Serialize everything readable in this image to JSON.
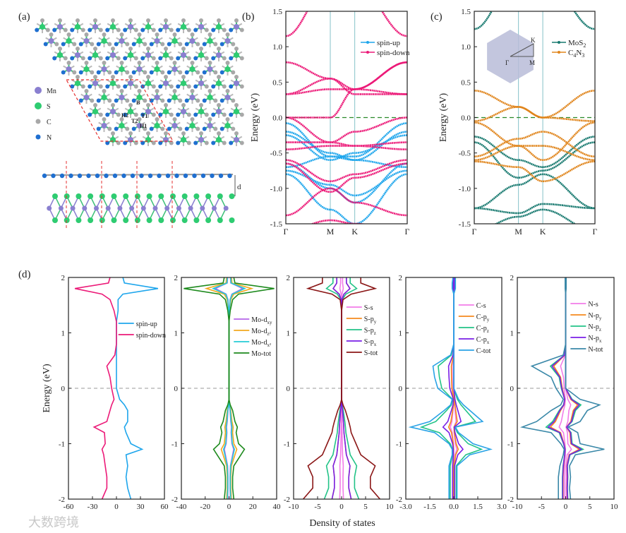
{
  "panel_labels": {
    "a": "(a)",
    "b": "(b)",
    "c": "(c)",
    "d": "(d)"
  },
  "structure": {
    "legend": [
      {
        "label": "Mn",
        "color": "#8a7fd0"
      },
      {
        "label": "S",
        "color": "#2ecc71"
      },
      {
        "label": "C",
        "color": "#a8a8a8"
      },
      {
        "label": "N",
        "color": "#1f6fd0"
      }
    ],
    "sites": [
      "B",
      "H2",
      "T1",
      "T2",
      "H1"
    ],
    "distance_label": "d"
  },
  "watermark": "大数跨境",
  "chart_data": [
    {
      "id": "b",
      "type": "line",
      "title": "",
      "ylabel": "Energy (eV)",
      "xlabel": "",
      "ylim": [
        -1.5,
        1.5
      ],
      "yticks": [
        "1.5",
        "1.0",
        "0.5",
        "0.0",
        "-0.5",
        "-1.0",
        "-1.5"
      ],
      "ytick_values": [
        1.5,
        1.0,
        0.5,
        0.0,
        -0.5,
        -1.0,
        -1.5
      ],
      "kpoints": [
        "Γ",
        "M",
        "K",
        "Γ"
      ],
      "kpath_positions": [
        0,
        1,
        1.55,
        2.73
      ],
      "fermi_level": 0,
      "legend": "top-right",
      "series": [
        {
          "name": "spin-up",
          "color": "#1fa6ec",
          "bands": [
            [
              -0.08,
              -0.55,
              -0.55,
              -0.08
            ],
            [
              -0.2,
              -0.5,
              -0.6,
              -0.2
            ],
            [
              -0.25,
              -0.6,
              -0.5,
              -0.25
            ],
            [
              -0.65,
              -1.0,
              -1.2,
              -0.65
            ],
            [
              -0.8,
              -1.3,
              -1.5,
              -0.8
            ],
            [
              -0.7,
              -0.55,
              -0.6,
              -0.7
            ],
            [
              -0.75,
              -0.95,
              -1.1,
              -0.75
            ]
          ]
        },
        {
          "name": "spin-down",
          "color": "#ec1a78",
          "bands": [
            [
              1.15,
              1.9,
              1.9,
              1.15
            ],
            [
              0.78,
              0.55,
              0.4,
              0.78
            ],
            [
              0.33,
              0.55,
              0.33,
              0.33
            ],
            [
              0.33,
              0.4,
              0.4,
              0.33
            ],
            [
              0.0,
              0.0,
              0.4,
              0.78
            ],
            [
              0.0,
              -0.35,
              -0.2,
              0.0
            ],
            [
              -0.35,
              -0.35,
              -0.4,
              -0.35
            ],
            [
              -0.45,
              -0.4,
              -0.4,
              -0.45
            ],
            [
              -0.6,
              -0.9,
              -0.8,
              -0.6
            ],
            [
              -0.65,
              -1.05,
              -0.85,
              -0.65
            ],
            [
              -1.38,
              -1.0,
              -1.2,
              -1.38
            ],
            [
              -1.6,
              -1.45,
              -1.5,
              -1.6
            ]
          ]
        }
      ]
    },
    {
      "id": "c",
      "type": "line",
      "title": "",
      "ylabel": "Energy (eV)",
      "xlabel": "",
      "ylim": [
        -1.5,
        1.5
      ],
      "yticks": [
        "1.5",
        "1.0",
        "0.5",
        "0.0",
        "-0.5",
        "-1.0",
        "-1.5"
      ],
      "ytick_values": [
        1.5,
        1.0,
        0.5,
        0.0,
        -0.5,
        -1.0,
        -1.5
      ],
      "kpoints": [
        "Γ",
        "M",
        "K",
        "Γ"
      ],
      "kpath_positions": [
        0,
        1,
        1.55,
        2.73
      ],
      "fermi_level": 0,
      "legend": "top-right",
      "inset": {
        "labels": [
          "Γ",
          "M",
          "K"
        ],
        "color": "#b8bcd8"
      },
      "series": [
        {
          "name": "MoS",
          "sub": "2",
          "color": "#17796f",
          "bands": [
            [
              1.25,
              2.0,
              2.0,
              1.25
            ],
            [
              -0.27,
              -0.6,
              -0.7,
              -0.27
            ],
            [
              -0.35,
              -0.85,
              -0.75,
              -0.35
            ],
            [
              -1.28,
              -0.95,
              -0.8,
              -1.28
            ],
            [
              -1.28,
              -1.35,
              -1.22,
              -1.28
            ],
            [
              -1.6,
              -1.4,
              -1.3,
              -1.6
            ]
          ]
        },
        {
          "name": "C",
          "sub": "4",
          "name2": "N",
          "sub2": "3",
          "color": "#e0851c",
          "bands": [
            [
              0.38,
              0.15,
              0.0,
              0.38
            ],
            [
              -0.05,
              0.15,
              0.0,
              -0.05
            ],
            [
              -0.07,
              -0.4,
              -0.6,
              -0.07
            ],
            [
              -0.55,
              -0.3,
              -0.2,
              -0.55
            ],
            [
              -0.6,
              -0.4,
              -0.4,
              -0.6
            ],
            [
              -0.62,
              -0.7,
              -0.9,
              -0.62
            ]
          ]
        }
      ]
    },
    {
      "id": "d",
      "type": "line",
      "xlabel": "Density of states",
      "ylabel": "Energy (eV)",
      "ylim": [
        -2,
        2
      ],
      "yticks": [
        "2",
        "1",
        "0",
        "-1",
        "-2"
      ],
      "ytick_values": [
        2,
        1,
        0,
        -1,
        -2
      ],
      "energy": [
        -2,
        -1.8,
        -1.6,
        -1.4,
        -1.2,
        -1.1,
        -1,
        -0.8,
        -0.7,
        -0.6,
        -0.4,
        -0.3,
        -0.2,
        0,
        0.2,
        0.4,
        0.6,
        0.8,
        1,
        1.2,
        1.4,
        1.6,
        1.7,
        1.8,
        1.9,
        2
      ],
      "subplots": [
        {
          "xlim": [
            -60,
            60
          ],
          "xticks": [
            "-60",
            "-30",
            "0",
            "30",
            "60"
          ],
          "xtick_values": [
            -60,
            -30,
            0,
            30,
            60
          ],
          "series": [
            {
              "name": "spin-up",
              "color": "#1fa6ec",
              "pos": [
                18,
                14,
                12,
                14,
                12,
                32,
                18,
                12,
                10,
                14,
                14,
                10,
                4,
                0,
                0,
                0,
                0,
                0,
                0,
                0,
                2,
                2,
                8,
                52,
                10,
                8
              ]
            },
            {
              "name": "spin-down",
              "color": "#ec1a78",
              "neg": [
                18,
                12,
                12,
                14,
                16,
                18,
                14,
                15,
                28,
                12,
                8,
                6,
                3,
                6,
                8,
                12,
                2,
                0,
                0,
                0,
                3,
                8,
                18,
                52,
                10,
                8
              ]
            }
          ]
        },
        {
          "xlim": [
            -40,
            40
          ],
          "xticks": [
            "-40",
            "-20",
            "0",
            "20",
            "40"
          ],
          "xtick_values": [
            -40,
            -20,
            0,
            20,
            40
          ],
          "total": [
            4,
            3,
            3,
            4,
            10,
            13,
            8,
            6,
            7,
            5,
            3,
            1,
            0,
            0,
            0,
            0,
            0,
            0,
            0,
            0,
            1,
            3,
            8,
            38,
            5,
            4
          ],
          "series": [
            {
              "name": "Mo-d",
              "sub": "xy",
              "color": "#b565e8",
              "scale": 0.3
            },
            {
              "name": "Mo-d",
              "sub": "z²",
              "color": "#f2a81e",
              "scale": 0.5
            },
            {
              "name": "Mo-d",
              "sub": "x²",
              "color": "#25cbd6",
              "scale": 0.35
            },
            {
              "name": "Mo-tot",
              "color": "#1d8a1d",
              "scale": 1
            }
          ]
        },
        {
          "xlim": [
            -10,
            10
          ],
          "xticks": [
            "-10",
            "-5",
            "0",
            "5",
            "10"
          ],
          "xtick_values": [
            -10,
            -5,
            0,
            5,
            10
          ],
          "total": [
            8,
            6,
            6,
            7,
            4,
            3.5,
            3,
            2,
            1.8,
            1.5,
            0.8,
            0.3,
            0,
            0,
            0,
            0,
            0,
            0,
            0,
            0,
            0,
            0.3,
            2,
            7,
            4,
            4
          ],
          "series": [
            {
              "name": "S-s",
              "color": "#f27ce8",
              "scale": 0.05
            },
            {
              "name": "S-p",
              "sub": "y",
              "color": "#f58a1e",
              "scale": 0.25
            },
            {
              "name": "S-p",
              "sub": "z",
              "color": "#22c387",
              "scale": 0.45
            },
            {
              "name": "S-p",
              "sub": "x",
              "color": "#7a1fe6",
              "scale": 0.25
            },
            {
              "name": "S-tot",
              "color": "#8b1717",
              "scale": 1
            }
          ]
        },
        {
          "xlim": [
            -3,
            3
          ],
          "xticks": [
            "-3.0",
            "-1.5",
            "0.0",
            "1.5",
            "3.0"
          ],
          "xtick_values": [
            -3,
            -1.5,
            0,
            1.5,
            3
          ],
          "total_pos": [
            0.2,
            0.2,
            0.2,
            0.2,
            1.0,
            2.3,
            1.2,
            0.3,
            0.1,
            1.8,
            1.0,
            0.6,
            0.3,
            0,
            0,
            0,
            0,
            0,
            0,
            0,
            0,
            0,
            0,
            0.1,
            0.1,
            0.1
          ],
          "total_neg": [
            0.3,
            0.3,
            0.3,
            0.3,
            0.1,
            0.1,
            0.3,
            1.2,
            2.7,
            1.5,
            0.6,
            0.2,
            0.1,
            1.0,
            1.2,
            1.3,
            0.2,
            0,
            0,
            0,
            0,
            0,
            0,
            0.1,
            0.1,
            0.05
          ],
          "series": [
            {
              "name": "C-s",
              "color": "#f27ce8",
              "scale": 0.08
            },
            {
              "name": "C-p",
              "sub": "y",
              "color": "#f58a1e",
              "scale": 0.12
            },
            {
              "name": "C-p",
              "sub": "z",
              "color": "#22c387",
              "scale": 0.75
            },
            {
              "name": "C-p",
              "sub": "x",
              "color": "#7a1fe6",
              "scale": 0.25
            },
            {
              "name": "C-tot",
              "color": "#2aa3e6",
              "scale": 1
            }
          ]
        },
        {
          "xlim": [
            -10,
            10
          ],
          "xticks": [
            "-10",
            "-5",
            "0",
            "5",
            "10"
          ],
          "xtick_values": [
            -10,
            -5,
            0,
            5,
            10
          ],
          "total_pos": [
            1,
            0.8,
            1,
            0.8,
            2,
            8,
            3,
            2.5,
            0.5,
            3,
            4.5,
            7,
            3,
            0,
            0,
            0,
            0,
            0,
            0,
            0,
            0,
            0,
            0,
            0.1,
            0.1,
            0.1
          ],
          "total_neg": [
            1.5,
            1.5,
            1.5,
            1.2,
            0.5,
            0.3,
            1,
            3,
            9,
            6,
            3,
            1,
            0.5,
            2,
            3,
            7,
            0.5,
            0,
            0,
            0,
            0,
            0,
            0,
            0.1,
            0.1,
            0.1
          ],
          "series": [
            {
              "name": "N-s",
              "color": "#f27ce8",
              "scale": 0.15
            },
            {
              "name": "N-p",
              "sub": "y",
              "color": "#f58a1e",
              "scale": 0.35
            },
            {
              "name": "N-p",
              "sub": "z",
              "color": "#22c387",
              "scale": 0.45
            },
            {
              "name": "N-p",
              "sub": "x",
              "color": "#7a1fe6",
              "scale": 0.4
            },
            {
              "name": "N-tot",
              "color": "#3a88a8",
              "scale": 1
            }
          ]
        }
      ]
    }
  ]
}
